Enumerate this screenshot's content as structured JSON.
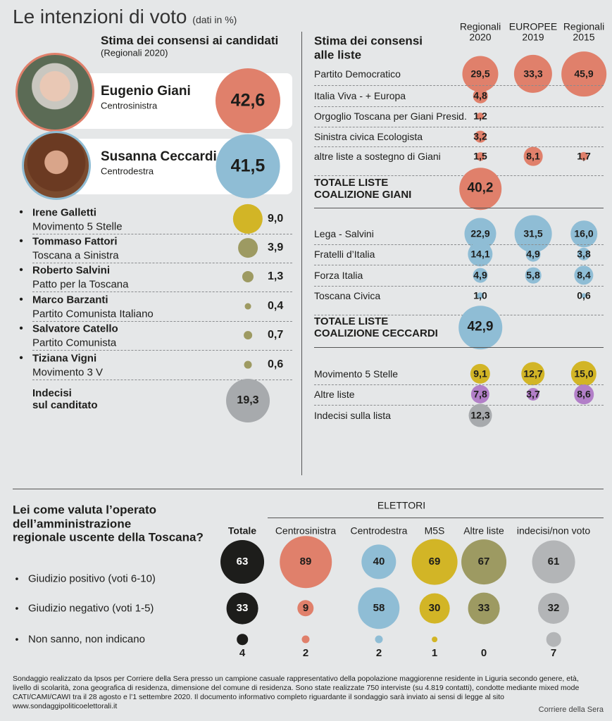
{
  "header": {
    "title": "Le intenzioni di voto",
    "subtitle": "(dati in %)"
  },
  "candidates": {
    "title": "Stima dei consensi ai candidati",
    "subtitle": "(Regionali 2020)",
    "main": [
      {
        "name": "Eugenio Giani",
        "party": "Centrosinistra",
        "value": 42.6,
        "label": "42,6",
        "color": "#e0806b"
      },
      {
        "name": "Susanna Ceccardi",
        "party": "Centrodestra",
        "value": 41.5,
        "label": "41,5",
        "color": "#8fbdd5"
      }
    ],
    "others": [
      {
        "name": "Irene Galletti",
        "party": "Movimento 5 Stelle",
        "value": 9.0,
        "label": "9,0",
        "color": "#d2b526"
      },
      {
        "name": "Tommaso Fattori",
        "party": "Toscana a Sinistra",
        "value": 3.9,
        "label": "3,9",
        "color": "#9d9a62"
      },
      {
        "name": "Roberto Salvini",
        "party": "Patto per la Toscana",
        "value": 1.3,
        "label": "1,3",
        "color": "#9d9a62"
      },
      {
        "name": "Marco Barzanti",
        "party": "Partito Comunista Italiano",
        "value": 0.4,
        "label": "0,4",
        "color": "#9d9a62"
      },
      {
        "name": "Salvatore Catello",
        "party": "Partito Comunista",
        "value": 0.7,
        "label": "0,7",
        "color": "#9d9a62"
      },
      {
        "name": "Tiziana Vigni",
        "party": "Movimento 3 V",
        "value": 0.6,
        "label": "0,6",
        "color": "#9d9a62"
      }
    ],
    "undecided": {
      "name": "Indecisi\nsul canditato",
      "value": 19.3,
      "label": "19,3",
      "color": "#a7aaad"
    }
  },
  "lists": {
    "title": "Stima dei consensi\nalle liste",
    "columns": [
      "Regionali\n2020",
      "EUROPEE\n2019",
      "Regionali\n2015"
    ],
    "groups": [
      {
        "rows": [
          {
            "name": "Partito Democratico",
            "values": [
              29.5,
              33.3,
              45.9
            ],
            "labels": [
              "29,5",
              "33,3",
              "45,9"
            ],
            "color": "#e0806b"
          },
          {
            "name": "Italia Viva - + Europa",
            "values": [
              4.8,
              null,
              null
            ],
            "labels": [
              "4,8",
              null,
              null
            ],
            "color": "#e0806b"
          },
          {
            "name": "Orgoglio Toscana per Giani Presid.",
            "values": [
              1.2,
              null,
              null
            ],
            "labels": [
              "1,2",
              null,
              null
            ],
            "color": "#e0806b"
          },
          {
            "name": "Sinistra civica Ecologista",
            "values": [
              3.2,
              null,
              null
            ],
            "labels": [
              "3,2",
              null,
              null
            ],
            "color": "#e0806b"
          },
          {
            "name": "altre liste a sostegno di Giani",
            "values": [
              1.5,
              8.1,
              1.7
            ],
            "labels": [
              "1,5",
              "8,1",
              "1,7"
            ],
            "color": "#e0806b"
          }
        ],
        "total": {
          "name": "TOTALE LISTE\nCOALIZIONE GIANI",
          "value": 40.2,
          "label": "40,2",
          "color": "#e0806b"
        }
      },
      {
        "rows": [
          {
            "name": "Lega - Salvini",
            "values": [
              22.9,
              31.5,
              16.0
            ],
            "labels": [
              "22,9",
              "31,5",
              "16,0"
            ],
            "color": "#8fbdd5"
          },
          {
            "name": "Fratelli d’Italia",
            "values": [
              14.1,
              4.9,
              3.8
            ],
            "labels": [
              "14,1",
              "4,9",
              "3,8"
            ],
            "color": "#8fbdd5"
          },
          {
            "name": "Forza Italia",
            "values": [
              4.9,
              5.8,
              8.4
            ],
            "labels": [
              "4,9",
              "5,8",
              "8,4"
            ],
            "color": "#8fbdd5"
          },
          {
            "name": "Toscana Civica",
            "values": [
              1.0,
              null,
              0.6
            ],
            "labels": [
              "1,0",
              null,
              "0,6"
            ],
            "color": "#8fbdd5"
          }
        ],
        "total": {
          "name": "TOTALE LISTE\nCOALIZIONE CECCARDI",
          "value": 42.9,
          "label": "42,9",
          "color": "#8fbdd5"
        }
      },
      {
        "rows": [
          {
            "name": "Movimento 5 Stelle",
            "values": [
              9.1,
              12.7,
              15.0
            ],
            "labels": [
              "9,1",
              "12,7",
              "15,0"
            ],
            "color": "#d2b526"
          },
          {
            "name": "Altre liste",
            "values": [
              7.8,
              3.7,
              8.6
            ],
            "labels": [
              "7,8",
              "3,7",
              "8,6"
            ],
            "color": "#b27fc8"
          },
          {
            "name": "Indecisi sulla lista",
            "values": [
              12.3,
              null,
              null
            ],
            "labels": [
              "12,3",
              null,
              null
            ],
            "color": "#a7aaad"
          }
        ]
      }
    ]
  },
  "assessment": {
    "question": "Lei come valuta l’operato\ndell’amministrazione\nregionale uscente della Toscana?",
    "group_label": "ELETTORI",
    "columns": [
      {
        "name": "Totale",
        "color": "#1d1d1b"
      },
      {
        "name": "Centrosinistra",
        "color": "#e0806b"
      },
      {
        "name": "Centrodestra",
        "color": "#8fbdd5"
      },
      {
        "name": "M5S",
        "color": "#d2b526"
      },
      {
        "name": "Altre liste",
        "color": "#9d9a62"
      },
      {
        "name": "indecisi/non voto",
        "color": "#b3b5b7"
      }
    ],
    "rows": [
      {
        "name": "Giudizio positivo (voti 6-10)",
        "values": [
          63,
          89,
          40,
          69,
          67,
          61
        ]
      },
      {
        "name": "Giudizio negativo (voti 1-5)",
        "values": [
          33,
          9,
          58,
          30,
          33,
          32
        ]
      },
      {
        "name": "Non sanno, non indicano",
        "values": [
          4,
          2,
          2,
          1,
          0,
          7
        ]
      }
    ]
  },
  "footer": {
    "note": "Sondaggio realizzato da Ipsos per Corriere della Sera presso un campione casuale  rappresentativo della popolazione maggiorenne residente in Liguria secondo genere, età, livello di scolarità, zona geografica di residenza, dimensione del comune di residenza. Sono state realizzate 750 interviste (su 4.819 contatti), condotte mediante mixed mode CATI/CAMI/CAWI tra il 28 agosto e l’1 settembre 2020.  Il documento informativo completo riguardante il sondaggio sarà inviato ai sensi di legge al sito www.sondaggipoliticoelettorali.it",
    "source": "Corriere della Sera"
  }
}
